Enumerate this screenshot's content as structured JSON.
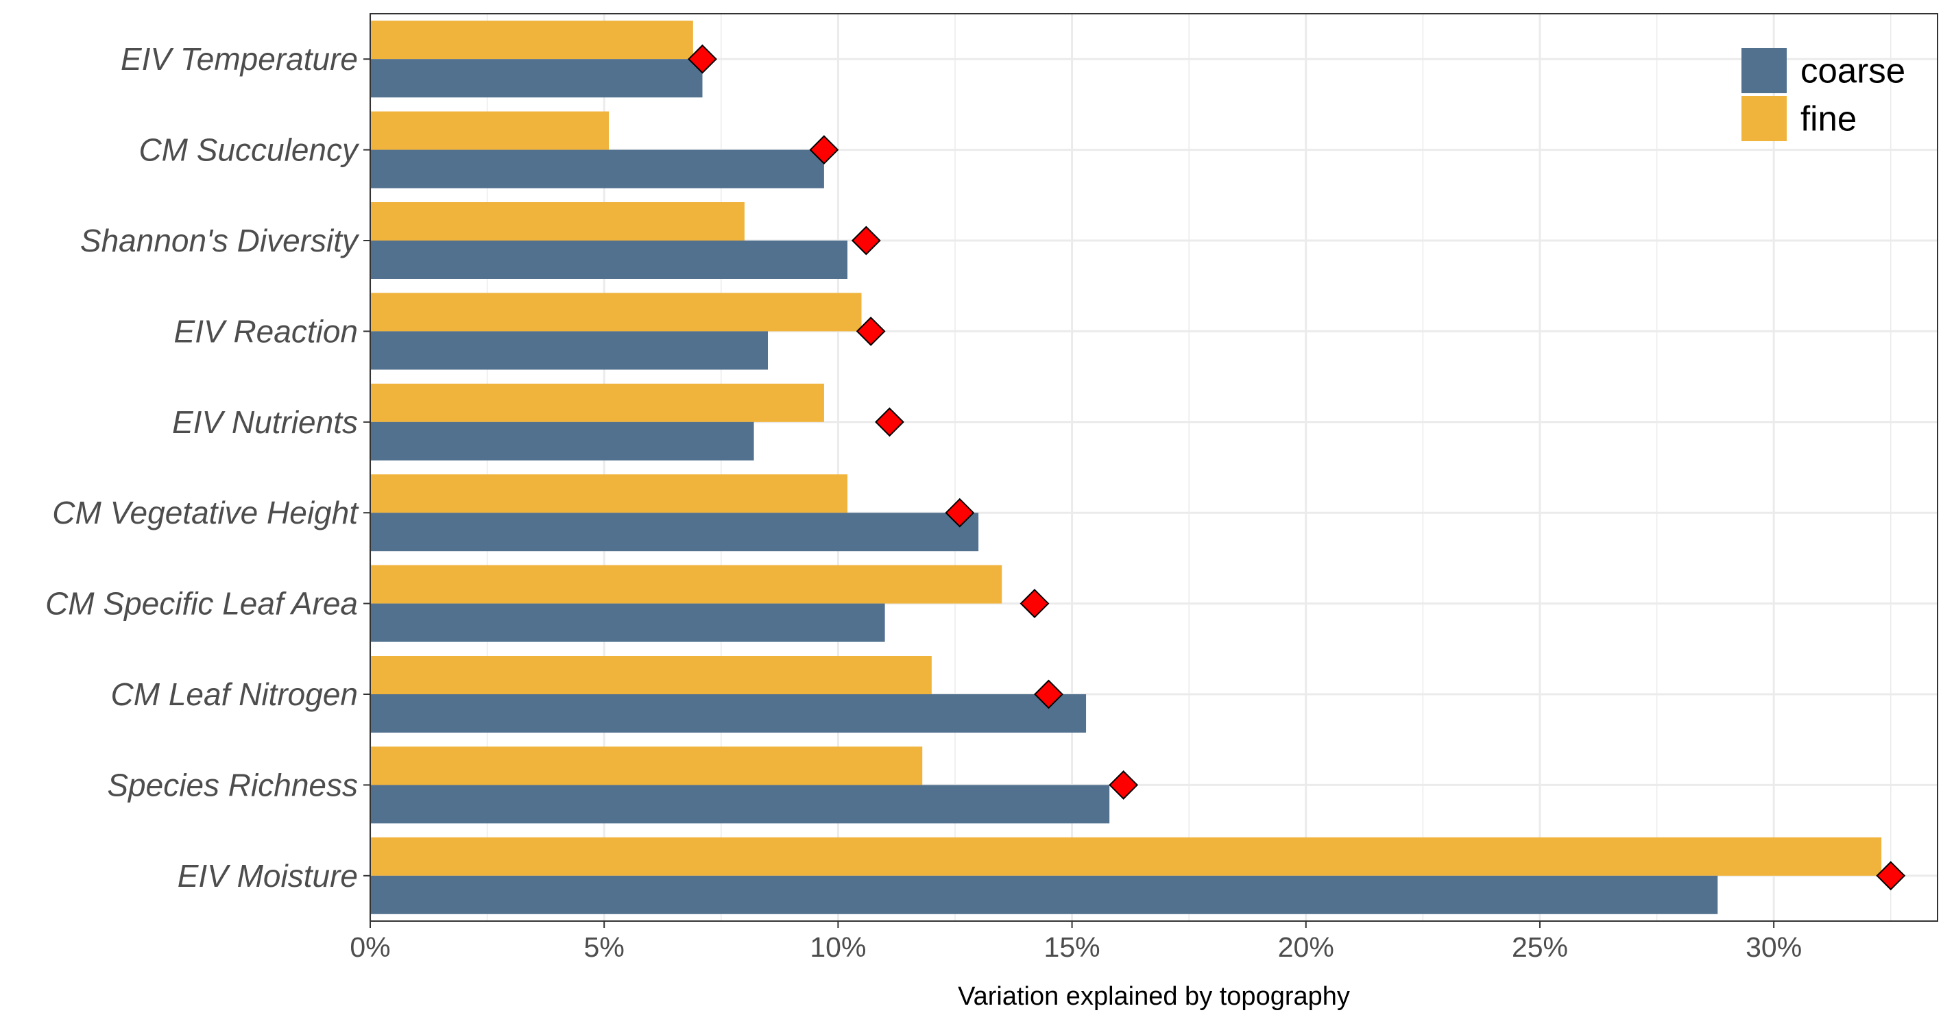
{
  "chart_data": {
    "type": "bar",
    "orientation": "horizontal",
    "title": "",
    "xlabel": "Variation explained by topography",
    "ylabel": "",
    "xlim": [
      0,
      33.5
    ],
    "x_ticks": [
      0,
      5,
      10,
      15,
      20,
      25,
      30
    ],
    "x_tick_labels": [
      "0%",
      "5%",
      "10%",
      "15%",
      "20%",
      "25%",
      "30%"
    ],
    "categories": [
      "EIV Temperature",
      "CM Succulency",
      "Shannon's Diversity",
      "EIV Reaction",
      "EIV Nutrients",
      "CM Vegetative Height",
      "CM Specific Leaf Area",
      "CM Leaf Nitrogen",
      "Species Richness",
      "EIV Moisture"
    ],
    "series": [
      {
        "name": "coarse",
        "color": "#52718f",
        "values": [
          7.1,
          9.7,
          10.2,
          8.5,
          8.2,
          13.0,
          11.0,
          15.3,
          15.8,
          28.8
        ]
      },
      {
        "name": "fine",
        "color": "#f0b33c",
        "values": [
          6.9,
          5.1,
          8.0,
          10.5,
          9.7,
          10.2,
          13.5,
          12.0,
          11.8,
          32.3
        ]
      }
    ],
    "markers": {
      "shape": "diamond",
      "color": "#ff0000",
      "values": [
        7.1,
        9.7,
        10.6,
        10.7,
        11.1,
        12.6,
        14.2,
        14.5,
        16.1,
        32.5
      ]
    },
    "grid": true,
    "legend": {
      "position": "top-right",
      "entries": [
        "coarse",
        "fine"
      ]
    }
  }
}
